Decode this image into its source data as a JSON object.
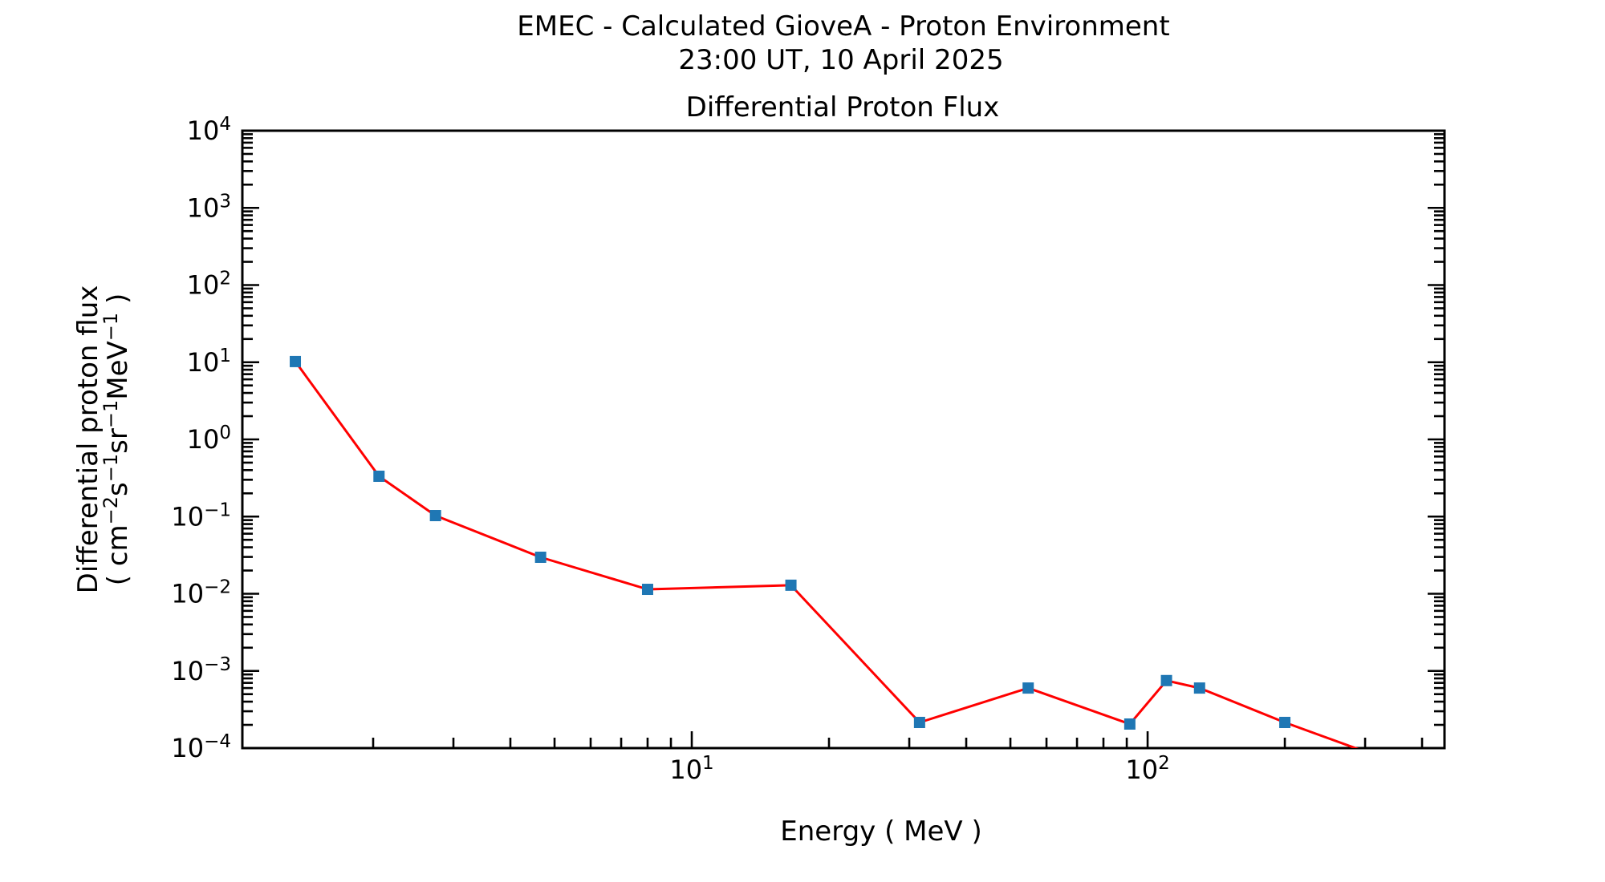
{
  "figure": {
    "suptitle_line1": "EMEC - Calculated GioveA - Proton Environment",
    "suptitle_line2": "23:00 UT, 10 April 2025",
    "background": "#ffffff",
    "axis_color": "#000000",
    "text_color": "#000000"
  },
  "chart_data": {
    "type": "line",
    "title": "Differential Proton Flux",
    "xlabel": "Energy ( MeV )",
    "ylabel_line1": "Differential proton flux",
    "ylabel_line2_parts": [
      {
        "t": "( cm",
        "sup": false
      },
      {
        "t": "−2",
        "sup": true
      },
      {
        "t": "s",
        "sup": false
      },
      {
        "t": "−1",
        "sup": true
      },
      {
        "t": "sr",
        "sup": false
      },
      {
        "t": "−1",
        "sup": true
      },
      {
        "t": "MeV",
        "sup": false
      },
      {
        "t": "−1",
        "sup": true
      },
      {
        "t": " )",
        "sup": false
      }
    ],
    "xscale": "log",
    "yscale": "log",
    "xlim": [
      1.033,
      448
    ],
    "ylim": [
      0.0001,
      10000
    ],
    "x_major_ticks": [
      10,
      100
    ],
    "x_tick_labels": [
      "10¹",
      "10²"
    ],
    "y_major_ticks": [
      10000,
      1000,
      100,
      10,
      1,
      0.1,
      0.01,
      0.001,
      0.0001
    ],
    "y_tick_labels": [
      "10⁴",
      "10³",
      "10²",
      "10¹",
      "10⁰",
      "10⁻¹",
      "10⁻²",
      "10⁻³",
      "10⁻⁴"
    ],
    "grid": false,
    "legend": "none",
    "series": [
      {
        "name": "Differential Proton Flux",
        "line_color": "#ff0000",
        "line_width": 3,
        "marker": "square",
        "marker_color": "#1f77b4",
        "marker_size": 14,
        "points": [
          [
            1.35,
            10.2
          ],
          [
            2.06,
            0.333
          ],
          [
            2.74,
            0.103
          ],
          [
            4.66,
            0.0297
          ],
          [
            8.0,
            0.0114
          ],
          [
            16.5,
            0.0129
          ],
          [
            31.6,
            0.000215
          ],
          [
            54.7,
            0.0006
          ],
          [
            91.4,
            0.000205
          ],
          [
            110,
            0.00075
          ],
          [
            130,
            0.0006
          ],
          [
            200,
            0.000215
          ],
          [
            300,
            9e-05
          ]
        ]
      }
    ]
  }
}
